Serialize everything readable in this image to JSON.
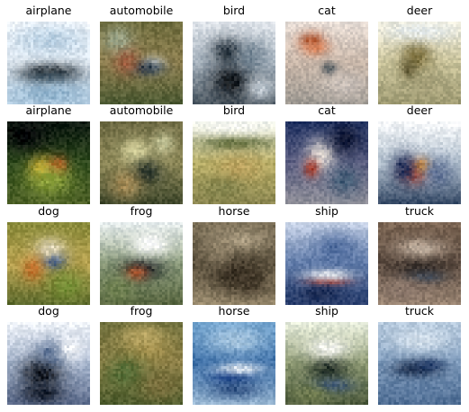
{
  "grid": {
    "rows": [
      [
        "airplane",
        "automobile",
        "bird",
        "cat",
        "deer"
      ],
      [
        "airplane",
        "automobile",
        "bird",
        "cat",
        "deer"
      ],
      [
        "dog",
        "frog",
        "horse",
        "ship",
        "truck"
      ],
      [
        "dog",
        "frog",
        "horse",
        "ship",
        "truck"
      ]
    ]
  }
}
